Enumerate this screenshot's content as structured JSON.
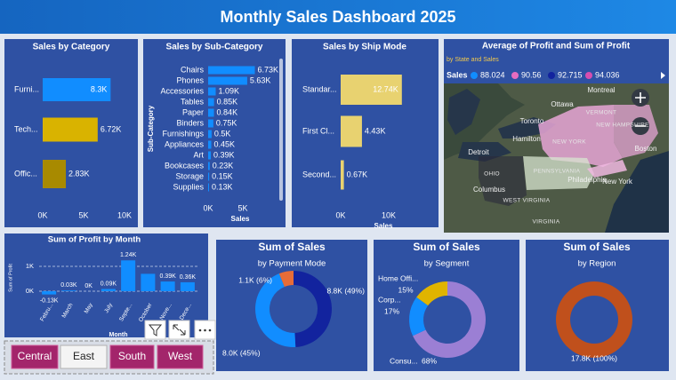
{
  "title": "Monthly Sales Dashboard 2025",
  "chart_data": [
    {
      "type": "hbar",
      "title": "Sales by Category",
      "categories": [
        "Furni...",
        "Tech...",
        "Offic..."
      ],
      "values": [
        8300,
        6720,
        2830
      ],
      "value_labels": [
        "8.3K",
        "6.72K",
        "2.83K"
      ],
      "colors": [
        "#118dff",
        "#d9b300",
        "#a88a00"
      ],
      "xlim": [
        0,
        10000
      ],
      "xticks": [
        {
          "value": 0,
          "label": "0K"
        },
        {
          "value": 5000,
          "label": "5K"
        },
        {
          "value": 10000,
          "label": "10K"
        }
      ]
    },
    {
      "type": "hbar",
      "title": "Sales by Sub-Category",
      "x_label": "Sales",
      "y_label": "Sub-Category",
      "categories": [
        "Chairs",
        "Phones",
        "Accessories",
        "Tables",
        "Paper",
        "Binders",
        "Furnishings",
        "Appliances",
        "Art",
        "Bookcases",
        "Storage",
        "Supplies"
      ],
      "values": [
        6730,
        5630,
        1090,
        850,
        840,
        750,
        500,
        450,
        390,
        230,
        150,
        130
      ],
      "value_labels": [
        "6.73K",
        "5.63K",
        "1.09K",
        "0.85K",
        "0.84K",
        "0.75K",
        "0.5K",
        "0.45K",
        "0.39K",
        "0.23K",
        "0.15K",
        "0.13K"
      ],
      "color": "#118dff",
      "xlim": [
        0,
        7000
      ],
      "xticks": [
        {
          "value": 0,
          "label": "0K"
        },
        {
          "value": 5000,
          "label": "5K"
        }
      ]
    },
    {
      "type": "hbar",
      "title": "Sales by Ship Mode",
      "x_label": "Sales",
      "categories": [
        "Standar...",
        "First Cl...",
        "Second..."
      ],
      "values": [
        12740,
        4430,
        670
      ],
      "value_labels": [
        "12.74K",
        "4.43K",
        "0.67K"
      ],
      "color": "#e8d270",
      "xlim": [
        0,
        13000
      ],
      "xticks": [
        {
          "value": 0,
          "label": "0K"
        },
        {
          "value": 10000,
          "label": "10K"
        }
      ]
    },
    {
      "type": "map",
      "title": "Average of Profit and Sum of Profit",
      "subtitle": "by State and Sales",
      "legend_title": "Sales",
      "series": [
        {
          "name": "88.024",
          "color": "#118dff"
        },
        {
          "name": "90.56",
          "color": "#e66cc0"
        },
        {
          "name": "92.715",
          "color": "#12239e"
        },
        {
          "name": "94.036",
          "color": "#d64eb0"
        }
      ],
      "places": [
        "Ottawa",
        "Montreal",
        "VERMONT",
        "Toronto",
        "Hamilton",
        "NEW YORK",
        "NEW HAMPSHIRE",
        "Boston",
        "Detroit",
        "OHIO",
        "Columbus",
        "PENNSYLVANIA",
        "Philadelphia",
        "New York",
        "WEST VIRGINIA",
        "VIRGINIA"
      ]
    },
    {
      "type": "column",
      "title": "Sum of Profit by Month",
      "x_label": "Month",
      "y_label": "Sum of Profit",
      "categories": [
        "Febru...",
        "March",
        "May",
        "July",
        "Septe...",
        "October",
        "Nove...",
        "Dece..."
      ],
      "values": [
        -130,
        30,
        0,
        90,
        1240,
        700,
        390,
        360
      ],
      "value_labels": [
        "-0.13K",
        "0.03K",
        "0K",
        "0.09K",
        "1.24K",
        null,
        "0.39K",
        "0.36K"
      ],
      "color": "#118dff",
      "grid": true,
      "ylim": [
        -200,
        1300
      ],
      "yticks": [
        {
          "value": 0,
          "label": "0K"
        },
        {
          "value": 1000,
          "label": "1K"
        }
      ]
    },
    {
      "type": "donut",
      "title": "Sum of Sales",
      "subtitle": "by Payment Mode",
      "values": [
        8800,
        8000,
        1100
      ],
      "value_labels": [
        "8.8K (49%)",
        "8.0K (45%)",
        "1.1K (6%)"
      ],
      "colors": [
        "#12239e",
        "#118dff",
        "#e66c37"
      ]
    },
    {
      "type": "donut",
      "title": "Sum of Sales",
      "subtitle": "by Segment",
      "categories": [
        "Consu...",
        "Corp...",
        "Home Offi..."
      ],
      "values": [
        68,
        17,
        15
      ],
      "value_labels": [
        "68%",
        "17%",
        "15%"
      ],
      "colors": [
        "#9b7fd4",
        "#118dff",
        "#e0b400"
      ]
    },
    {
      "type": "donut",
      "title": "Sum of Sales",
      "subtitle": "by Region",
      "values": [
        17800
      ],
      "value_labels": [
        "17.8K (100%)"
      ],
      "colors": [
        "#c0501c"
      ]
    }
  ],
  "slicer": {
    "options": [
      "Central",
      "East",
      "South",
      "West"
    ],
    "selected": 1
  }
}
